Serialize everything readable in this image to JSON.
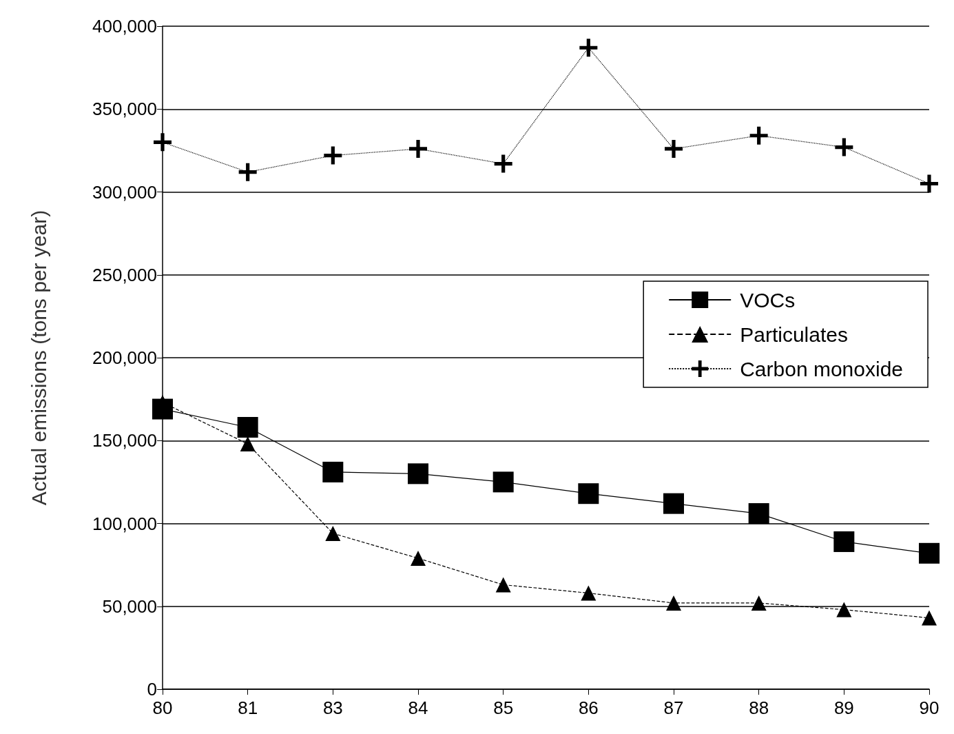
{
  "chart_data": {
    "type": "line",
    "ylabel": "Actual emissions (tons per year)",
    "categories": [
      "80",
      "81",
      "83",
      "84",
      "85",
      "86",
      "87",
      "88",
      "89",
      "90"
    ],
    "series": [
      {
        "name": "VOCs",
        "color": "#000000",
        "marker": "square",
        "line_style": "solid",
        "values": [
          169000,
          158000,
          131000,
          130000,
          125000,
          118000,
          112000,
          106000,
          89000,
          82000
        ]
      },
      {
        "name": "Particulates",
        "color": "#000000",
        "marker": "triangle",
        "line_style": "dashed",
        "values": [
          173000,
          148000,
          94000,
          79000,
          63000,
          58000,
          52000,
          52000,
          48000,
          43000
        ]
      },
      {
        "name": "Carbon monoxide",
        "color": "#000000",
        "marker": "cross",
        "line_style": "dotted",
        "values": [
          330000,
          312000,
          322000,
          326000,
          317000,
          387000,
          326000,
          334000,
          327000,
          305000
        ]
      }
    ],
    "ylim": [
      0,
      400000
    ],
    "yticks": [
      0,
      {
        "value": 50000,
        "label": "50,000"
      },
      {
        "value": 100000,
        "label": "100,000"
      },
      {
        "value": 150000,
        "label": "150,000"
      },
      {
        "value": 200000,
        "label": "200,000"
      },
      {
        "value": 250000,
        "label": "250,000"
      },
      {
        "value": 300000,
        "label": "300,000"
      },
      {
        "value": 350000,
        "label": "350,000"
      },
      {
        "value": 400000,
        "label": "400,000"
      }
    ],
    "grid": "y",
    "legend": "right"
  }
}
